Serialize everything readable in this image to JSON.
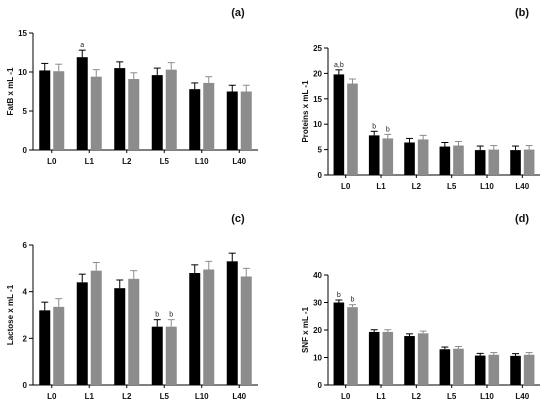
{
  "chart_data": [
    {
      "panel": "(a)",
      "type": "bar",
      "ylabel": "FatB x mL -1",
      "categories": [
        "L0",
        "L1",
        "L2",
        "L5",
        "L10",
        "L40"
      ],
      "yticks": [
        "0",
        "5",
        "10",
        "15"
      ],
      "ylim": [
        0,
        15
      ],
      "series": [
        {
          "color": "#000000",
          "values": [
            10.2,
            11.9,
            10.5,
            9.6,
            7.8,
            7.5
          ],
          "errors": [
            0.9,
            0.9,
            0.8,
            0.9,
            0.8,
            0.8
          ]
        },
        {
          "color": "#8c8c8c",
          "values": [
            10.1,
            9.4,
            9.1,
            10.3,
            8.6,
            7.5
          ],
          "errors": [
            0.9,
            0.9,
            0.8,
            0.9,
            0.8,
            0.8
          ]
        }
      ],
      "annotations": [
        {
          "category": "L1",
          "series": 0,
          "text": "a"
        }
      ]
    },
    {
      "panel": "(b)",
      "type": "bar",
      "ylabel": "Proteins x mL -1",
      "categories": [
        "L0",
        "L1",
        "L2",
        "L5",
        "L10",
        "L40"
      ],
      "yticks": [
        "0",
        "5",
        "10",
        "15",
        "20",
        "25"
      ],
      "ylim": [
        0,
        25
      ],
      "series": [
        {
          "color": "#000000",
          "values": [
            19.8,
            7.8,
            6.4,
            5.6,
            4.9,
            4.9
          ],
          "errors": [
            0.9,
            0.8,
            0.8,
            0.8,
            0.8,
            0.8
          ]
        },
        {
          "color": "#8c8c8c",
          "values": [
            18.0,
            7.2,
            7.0,
            5.8,
            5.0,
            5.0
          ],
          "errors": [
            0.9,
            0.8,
            0.8,
            0.8,
            0.8,
            0.8
          ]
        }
      ],
      "annotations": [
        {
          "category": "L0",
          "series": 0,
          "text": "a,b"
        },
        {
          "category": "L1",
          "series": 0,
          "text": "b"
        },
        {
          "category": "L1",
          "series": 1,
          "text": "b"
        }
      ]
    },
    {
      "panel": "(c)",
      "type": "bar",
      "ylabel": "Lactose x mL -1",
      "categories": [
        "L0",
        "L1",
        "L2",
        "L5",
        "L10",
        "L40"
      ],
      "yticks": [
        "0",
        "2",
        "4",
        "6"
      ],
      "ylim": [
        0,
        6
      ],
      "series": [
        {
          "color": "#000000",
          "values": [
            3.2,
            4.4,
            4.15,
            2.5,
            4.8,
            5.3
          ],
          "errors": [
            0.35,
            0.35,
            0.35,
            0.3,
            0.35,
            0.35
          ]
        },
        {
          "color": "#8c8c8c",
          "values": [
            3.35,
            4.9,
            4.55,
            2.5,
            4.95,
            4.65
          ],
          "errors": [
            0.35,
            0.35,
            0.35,
            0.3,
            0.35,
            0.35
          ]
        }
      ],
      "annotations": [
        {
          "category": "L5",
          "series": 0,
          "text": "b"
        },
        {
          "category": "L5",
          "series": 1,
          "text": "b"
        }
      ]
    },
    {
      "panel": "(d)",
      "type": "bar",
      "ylabel": "SNF x mL -1",
      "categories": [
        "L0",
        "L1",
        "L2",
        "L5",
        "L10",
        "L40"
      ],
      "yticks": [
        "0",
        "10",
        "20",
        "30",
        "40"
      ],
      "ylim": [
        0,
        40
      ],
      "series": [
        {
          "color": "#000000",
          "values": [
            30.0,
            19.3,
            17.8,
            13.0,
            10.7,
            10.6
          ],
          "errors": [
            0.9,
            0.8,
            0.8,
            0.8,
            0.8,
            0.8
          ]
        },
        {
          "color": "#8c8c8c",
          "values": [
            28.3,
            19.3,
            18.8,
            13.2,
            11.0,
            11.0
          ],
          "errors": [
            0.9,
            0.8,
            0.8,
            0.8,
            0.8,
            0.8
          ]
        }
      ],
      "annotations": [
        {
          "category": "L0",
          "series": 0,
          "text": "b"
        },
        {
          "category": "L0",
          "series": 1,
          "text": "b"
        }
      ]
    }
  ]
}
